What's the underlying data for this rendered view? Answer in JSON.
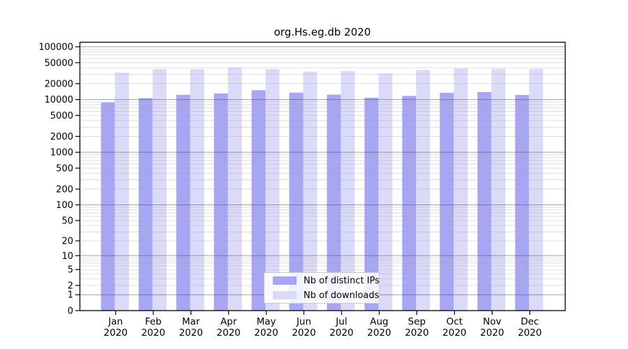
{
  "chart_data": {
    "type": "bar",
    "title": "org.Hs.eg.db 2020",
    "categories": [
      "Jan",
      "Feb",
      "Mar",
      "Apr",
      "May",
      "Jun",
      "Jul",
      "Aug",
      "Sep",
      "Oct",
      "Nov",
      "Dec"
    ],
    "category_sublabel": "2020",
    "series": [
      {
        "name": "Nb of distinct IPs",
        "color": "#a6a6f4",
        "values": [
          8800,
          10600,
          12300,
          13000,
          15000,
          13500,
          12400,
          10800,
          11700,
          13400,
          13800,
          12200
        ]
      },
      {
        "name": "Nb of downloads",
        "color": "#dbdbf9",
        "values": [
          32400,
          37700,
          37600,
          40700,
          37800,
          33700,
          34500,
          31200,
          36400,
          38900,
          38100,
          38100
        ]
      }
    ],
    "yscale": "log10(1+x)",
    "ylim": [
      0,
      100000
    ],
    "yticks": [
      100000,
      50000,
      20000,
      10000,
      5000,
      2000,
      1000,
      500,
      200,
      100,
      50,
      20,
      10,
      5,
      2,
      1,
      0
    ],
    "grid": "horizontal minor gridlines on, darker lines at powers of ten",
    "legend_position": "inside bottom-center",
    "colors": {
      "axis": "#000000",
      "grid_minor": "#e0e0e0",
      "grid_decade": "#a2a2a2",
      "text": "#000000",
      "legend_border": "#c9c9c9"
    }
  }
}
